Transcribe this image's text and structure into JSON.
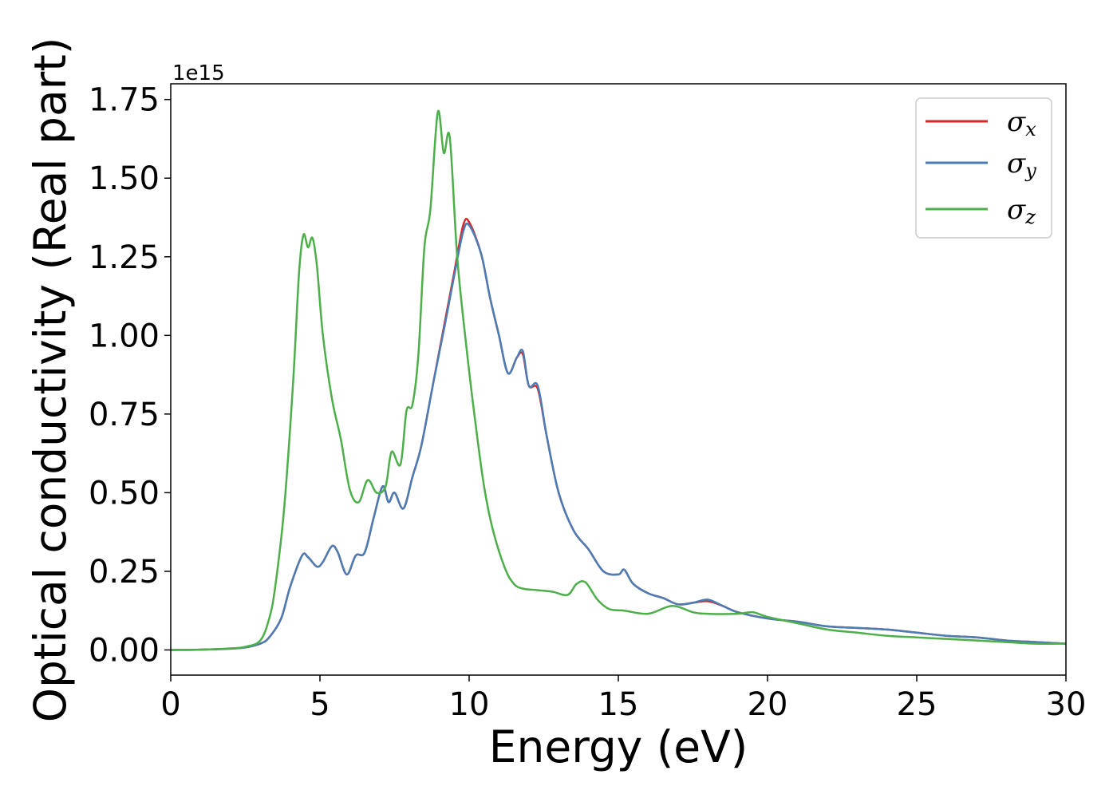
{
  "chart_data": {
    "type": "line",
    "title": "",
    "xlabel": "Energy (eV)",
    "ylabel": "Optical conductivity (Real part)",
    "y_offset_text": "1e15",
    "xlim": [
      0,
      30
    ],
    "ylim": [
      -0.08,
      1.8
    ],
    "x_ticks": [
      0,
      5,
      10,
      15,
      20,
      25,
      30
    ],
    "x_tick_labels": [
      "0",
      "5",
      "10",
      "15",
      "20",
      "25",
      "30"
    ],
    "y_ticks": [
      0,
      0.25,
      0.5,
      0.75,
      1.0,
      1.25,
      1.5,
      1.75
    ],
    "y_tick_labels": [
      "0.00",
      "0.25",
      "0.50",
      "0.75",
      "1.00",
      "1.25",
      "1.50",
      "1.75"
    ],
    "grid": false,
    "legend_position": "top-right",
    "series": [
      {
        "name": "σx",
        "symbol": "σ",
        "subscript": "x",
        "color": "#d62728",
        "points": [
          [
            0,
            0
          ],
          [
            1,
            0.001
          ],
          [
            2,
            0.004
          ],
          [
            2.5,
            0.008
          ],
          [
            3,
            0.02
          ],
          [
            3.3,
            0.04
          ],
          [
            3.7,
            0.1
          ],
          [
            4,
            0.2
          ],
          [
            4.4,
            0.3
          ],
          [
            4.6,
            0.295
          ],
          [
            4.9,
            0.265
          ],
          [
            5.1,
            0.28
          ],
          [
            5.4,
            0.33
          ],
          [
            5.6,
            0.31
          ],
          [
            5.9,
            0.24
          ],
          [
            6.2,
            0.3
          ],
          [
            6.5,
            0.31
          ],
          [
            6.8,
            0.42
          ],
          [
            7.1,
            0.52
          ],
          [
            7.3,
            0.47
          ],
          [
            7.5,
            0.5
          ],
          [
            7.8,
            0.45
          ],
          [
            8.1,
            0.55
          ],
          [
            8.4,
            0.65
          ],
          [
            8.8,
            0.85
          ],
          [
            9.2,
            1.05
          ],
          [
            9.5,
            1.2
          ],
          [
            9.8,
            1.35
          ],
          [
            10,
            1.36
          ],
          [
            10.4,
            1.26
          ],
          [
            10.7,
            1.12
          ],
          [
            11,
            1.0
          ],
          [
            11.3,
            0.88
          ],
          [
            11.6,
            0.93
          ],
          [
            11.8,
            0.94
          ],
          [
            12,
            0.84
          ],
          [
            12.3,
            0.83
          ],
          [
            12.6,
            0.68
          ],
          [
            13,
            0.5
          ],
          [
            13.5,
            0.38
          ],
          [
            14,
            0.32
          ],
          [
            14.5,
            0.25
          ],
          [
            15,
            0.24
          ],
          [
            15.2,
            0.255
          ],
          [
            15.5,
            0.21
          ],
          [
            16,
            0.18
          ],
          [
            16.5,
            0.165
          ],
          [
            17,
            0.145
          ],
          [
            17.5,
            0.15
          ],
          [
            18,
            0.155
          ],
          [
            18.5,
            0.14
          ],
          [
            19,
            0.12
          ],
          [
            20,
            0.1
          ],
          [
            21,
            0.09
          ],
          [
            22,
            0.075
          ],
          [
            23,
            0.07
          ],
          [
            24,
            0.065
          ],
          [
            25,
            0.055
          ],
          [
            26,
            0.045
          ],
          [
            27,
            0.04
          ],
          [
            28,
            0.03
          ],
          [
            29,
            0.025
          ],
          [
            30,
            0.02
          ]
        ]
      },
      {
        "name": "σy",
        "symbol": "σ",
        "subscript": "y",
        "color": "#4a7cb5",
        "points": [
          [
            0,
            0
          ],
          [
            1,
            0.001
          ],
          [
            2,
            0.004
          ],
          [
            2.5,
            0.008
          ],
          [
            3,
            0.02
          ],
          [
            3.3,
            0.04
          ],
          [
            3.7,
            0.1
          ],
          [
            4,
            0.2
          ],
          [
            4.4,
            0.3
          ],
          [
            4.6,
            0.295
          ],
          [
            4.9,
            0.265
          ],
          [
            5.1,
            0.28
          ],
          [
            5.4,
            0.33
          ],
          [
            5.6,
            0.31
          ],
          [
            5.9,
            0.24
          ],
          [
            6.2,
            0.3
          ],
          [
            6.5,
            0.31
          ],
          [
            6.8,
            0.42
          ],
          [
            7.1,
            0.52
          ],
          [
            7.3,
            0.47
          ],
          [
            7.5,
            0.5
          ],
          [
            7.8,
            0.45
          ],
          [
            8.1,
            0.55
          ],
          [
            8.4,
            0.65
          ],
          [
            8.8,
            0.85
          ],
          [
            9.2,
            1.04
          ],
          [
            9.5,
            1.19
          ],
          [
            9.8,
            1.33
          ],
          [
            10,
            1.35
          ],
          [
            10.4,
            1.26
          ],
          [
            10.7,
            1.12
          ],
          [
            11,
            1.0
          ],
          [
            11.3,
            0.88
          ],
          [
            11.6,
            0.93
          ],
          [
            11.8,
            0.95
          ],
          [
            12,
            0.84
          ],
          [
            12.3,
            0.84
          ],
          [
            12.6,
            0.68
          ],
          [
            13,
            0.5
          ],
          [
            13.5,
            0.38
          ],
          [
            14,
            0.32
          ],
          [
            14.5,
            0.25
          ],
          [
            15,
            0.24
          ],
          [
            15.2,
            0.255
          ],
          [
            15.5,
            0.21
          ],
          [
            16,
            0.18
          ],
          [
            16.5,
            0.165
          ],
          [
            17,
            0.145
          ],
          [
            17.5,
            0.15
          ],
          [
            18,
            0.16
          ],
          [
            18.5,
            0.14
          ],
          [
            19,
            0.12
          ],
          [
            20,
            0.1
          ],
          [
            21,
            0.09
          ],
          [
            22,
            0.075
          ],
          [
            23,
            0.07
          ],
          [
            24,
            0.065
          ],
          [
            25,
            0.055
          ],
          [
            26,
            0.045
          ],
          [
            27,
            0.04
          ],
          [
            28,
            0.03
          ],
          [
            29,
            0.025
          ],
          [
            30,
            0.02
          ]
        ]
      },
      {
        "name": "σz",
        "symbol": "σ",
        "subscript": "z",
        "color": "#4daf4a",
        "points": [
          [
            0,
            0
          ],
          [
            1,
            0.001
          ],
          [
            2,
            0.005
          ],
          [
            2.5,
            0.01
          ],
          [
            3,
            0.03
          ],
          [
            3.3,
            0.1
          ],
          [
            3.5,
            0.2
          ],
          [
            3.8,
            0.45
          ],
          [
            4.1,
            0.85
          ],
          [
            4.3,
            1.2
          ],
          [
            4.45,
            1.32
          ],
          [
            4.6,
            1.28
          ],
          [
            4.75,
            1.31
          ],
          [
            4.9,
            1.22
          ],
          [
            5.1,
            1.0
          ],
          [
            5.4,
            0.8
          ],
          [
            5.7,
            0.67
          ],
          [
            6,
            0.51
          ],
          [
            6.3,
            0.47
          ],
          [
            6.6,
            0.54
          ],
          [
            6.9,
            0.5
          ],
          [
            7.2,
            0.52
          ],
          [
            7.4,
            0.63
          ],
          [
            7.7,
            0.59
          ],
          [
            7.9,
            0.76
          ],
          [
            8.1,
            0.78
          ],
          [
            8.3,
            0.94
          ],
          [
            8.5,
            1.28
          ],
          [
            8.7,
            1.4
          ],
          [
            8.95,
            1.71
          ],
          [
            9.15,
            1.58
          ],
          [
            9.35,
            1.63
          ],
          [
            9.6,
            1.25
          ],
          [
            9.9,
            0.97
          ],
          [
            10.2,
            0.73
          ],
          [
            10.5,
            0.52
          ],
          [
            10.8,
            0.38
          ],
          [
            11.2,
            0.26
          ],
          [
            11.5,
            0.21
          ],
          [
            11.8,
            0.195
          ],
          [
            12.3,
            0.19
          ],
          [
            12.8,
            0.185
          ],
          [
            13.3,
            0.175
          ],
          [
            13.6,
            0.21
          ],
          [
            13.9,
            0.215
          ],
          [
            14.3,
            0.16
          ],
          [
            14.7,
            0.13
          ],
          [
            15.2,
            0.125
          ],
          [
            16,
            0.115
          ],
          [
            16.8,
            0.14
          ],
          [
            17.5,
            0.12
          ],
          [
            18,
            0.115
          ],
          [
            19,
            0.115
          ],
          [
            19.5,
            0.12
          ],
          [
            20,
            0.105
          ],
          [
            21,
            0.085
          ],
          [
            22,
            0.065
          ],
          [
            23,
            0.055
          ],
          [
            24,
            0.045
          ],
          [
            25,
            0.04
          ],
          [
            26,
            0.035
          ],
          [
            27,
            0.03
          ],
          [
            28,
            0.025
          ],
          [
            29,
            0.02
          ],
          [
            30,
            0.02
          ]
        ]
      }
    ]
  }
}
